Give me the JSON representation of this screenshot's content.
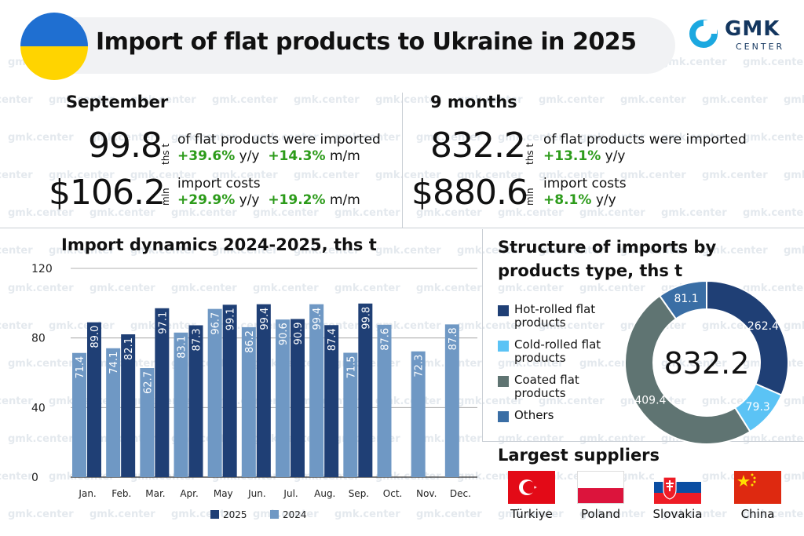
{
  "header": {
    "title": "Import of flat products to Ukraine in 2025",
    "logo_name": "GMK",
    "logo_sub": "CENTER",
    "watermark_text": "gmk.center"
  },
  "september": {
    "title": "September",
    "volume": "99.8",
    "volume_unit": "ths t",
    "volume_desc": "of flat products were imported",
    "volume_yy": "+39.6%",
    "yy_label": "y/y",
    "volume_mm": "+14.3%",
    "mm_label": "m/m",
    "cost": "$106.2",
    "cost_unit": "mln",
    "cost_desc": "import costs",
    "cost_yy": "+29.9%",
    "cost_mm": "+19.2%"
  },
  "nine_months": {
    "title": "9 months",
    "volume": "832.2",
    "volume_unit": "ths t",
    "volume_desc": "of flat products were imported",
    "volume_yy": "+13.1%",
    "yy_label": "y/y",
    "cost": "$880.6",
    "cost_unit": "mln",
    "cost_desc": "import costs",
    "cost_yy": "+8.1%"
  },
  "colors": {
    "dark_blue": "#1f3f75",
    "mid_blue": "#6f98c4",
    "light_blue": "#5bc3f5",
    "gray_green": "#5f7472",
    "steel_blue": "#3a6ea5",
    "green": "#2c9b1a"
  },
  "chart_data": [
    {
      "type": "bar",
      "title": "Import dynamics 2024-2025, ths t",
      "categories": [
        "Jan.",
        "Feb.",
        "Mar.",
        "Apr.",
        "May",
        "Jun.",
        "Jul.",
        "Aug.",
        "Sep.",
        "Oct.",
        "Nov.",
        "Dec."
      ],
      "series": [
        {
          "name": "2024",
          "values": [
            71.4,
            74.1,
            62.7,
            83.1,
            96.7,
            86.2,
            90.6,
            99.4,
            71.5,
            87.6,
            72.3,
            87.8
          ],
          "color": "#6f98c4"
        },
        {
          "name": "2025",
          "values": [
            89.0,
            82.1,
            97.1,
            87.3,
            99.1,
            99.4,
            90.9,
            87.4,
            99.8,
            null,
            null,
            null
          ],
          "color": "#1f3f75"
        }
      ],
      "yticks": [
        0,
        40,
        80,
        120
      ],
      "ylim": [
        0,
        120
      ],
      "grid": true,
      "legend": "bottom"
    },
    {
      "type": "pie",
      "title": "Structure of imports by products type, ths t",
      "center_label": "832.2",
      "slices": [
        {
          "label": "Hot-rolled flat products",
          "value": 262.4,
          "color": "#1f3f75"
        },
        {
          "label": "Cold-rolled flat products",
          "value": 79.3,
          "color": "#5bc3f5"
        },
        {
          "label": "Coated flat products",
          "value": 409.4,
          "color": "#5f7472"
        },
        {
          "label": "Others",
          "value": 81.1,
          "color": "#3a6ea5"
        }
      ]
    }
  ],
  "suppliers": {
    "title": "Largest suppliers",
    "items": [
      {
        "name": "Türkiye",
        "flag": "turkey-flag-icon"
      },
      {
        "name": "Poland",
        "flag": "poland-flag-icon"
      },
      {
        "name": "Slovakia",
        "flag": "slovakia-flag-icon"
      },
      {
        "name": "China",
        "flag": "china-flag-icon"
      }
    ]
  }
}
